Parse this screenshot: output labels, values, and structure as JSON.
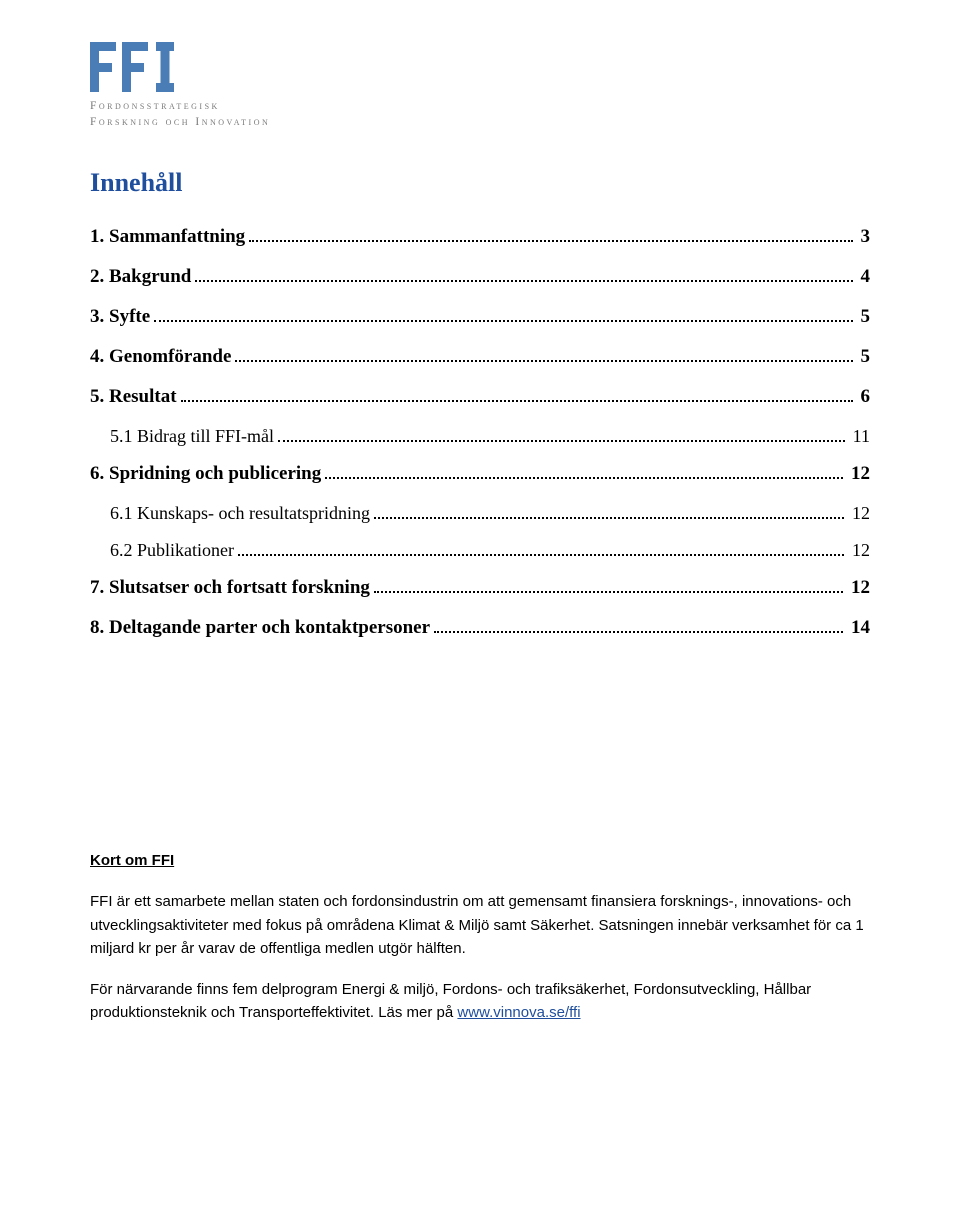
{
  "logo": {
    "sub1": "Fordonsstrategisk",
    "sub2": "Forskning och Innovation",
    "color": "#4a7db5",
    "sub_color": "#7a7a7a"
  },
  "title": "Innehåll",
  "title_color": "#1f4e9c",
  "toc": [
    {
      "label": "1.   Sammanfattning",
      "page": "3",
      "bold": true,
      "sub": false
    },
    {
      "label": "2.   Bakgrund",
      "page": "4",
      "bold": true,
      "sub": false
    },
    {
      "label": "3.   Syfte",
      "page": "5",
      "bold": true,
      "sub": false
    },
    {
      "label": "4.   Genomförande",
      "page": "5",
      "bold": true,
      "sub": false
    },
    {
      "label": "5.   Resultat",
      "page": "6",
      "bold": true,
      "sub": false
    },
    {
      "label": "5.1 Bidrag till FFI-mål",
      "page": "11",
      "bold": false,
      "sub": true
    },
    {
      "label": "6.   Spridning och publicering",
      "page": "12",
      "bold": true,
      "sub": false
    },
    {
      "label": "6.1 Kunskaps- och resultatspridning",
      "page": "12",
      "bold": false,
      "sub": true
    },
    {
      "label": "6.2 Publikationer",
      "page": "12",
      "bold": false,
      "sub": true
    },
    {
      "label": "7.   Slutsatser och fortsatt forskning",
      "page": "12",
      "bold": true,
      "sub": false
    },
    {
      "label": "8.   Deltagande parter och kontaktpersoner",
      "page": "14",
      "bold": true,
      "sub": false
    }
  ],
  "info": {
    "heading": " Kort om FFI",
    "p1": "FFI är ett samarbete mellan staten och fordonsindustrin om att gemensamt finansiera forsknings-, innovations- och utvecklingsaktiviteter med fokus på områdena Klimat & Miljö samt Säkerhet. Satsningen innebär verksamhet för ca 1 miljard kr per år varav de offentliga medlen utgör hälften.",
    "p2_a": "För närvarande finns fem delprogram Energi & miljö, Fordons- och trafiksäkerhet, Fordonsutveckling, Hållbar produktionsteknik och Transporteffektivitet. Läs mer på ",
    "p2_link": "www.vinnova.se/ffi",
    "link_color": "#1f4e9c"
  },
  "fonts": {
    "body": "Arial, Helvetica, sans-serif",
    "serif": "'Times New Roman', Times, serif"
  },
  "background": "#ffffff"
}
